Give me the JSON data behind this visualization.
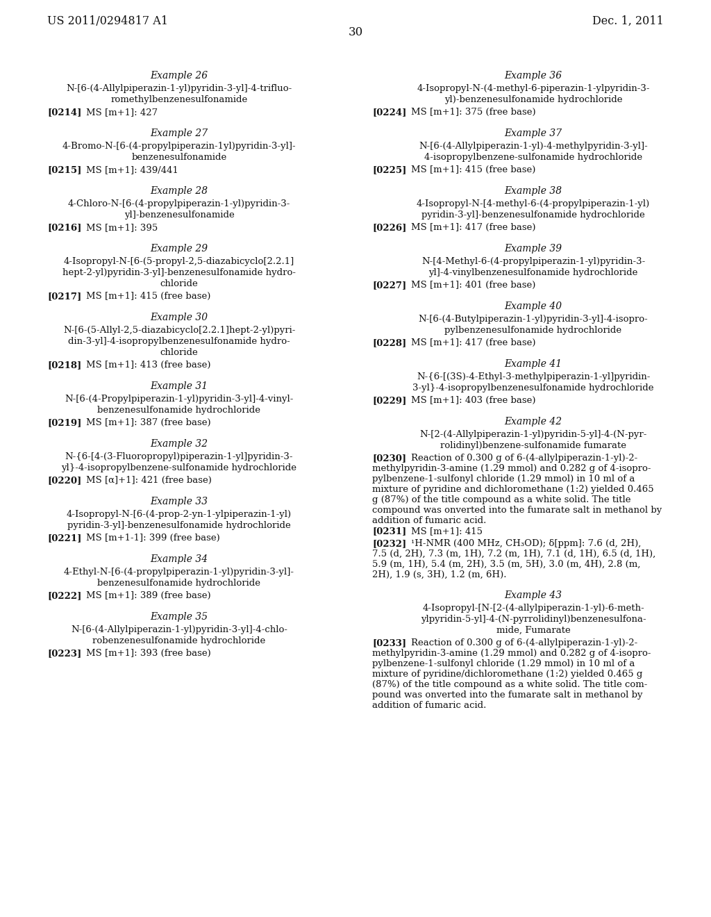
{
  "background_color": "#ffffff",
  "header_left": "US 2011/0294817 A1",
  "header_right": "Dec. 1, 2011",
  "page_number": "30",
  "left_items": [
    {
      "type": "title",
      "text": "Example 26"
    },
    {
      "type": "compound",
      "lines": [
        "N-[6-(4-Allylpiperazin-1-yl)pyridin-3-yl]-4-trifluo-",
        "romethylbenzenesulfonamide"
      ]
    },
    {
      "type": "ms",
      "bold": "[0214]",
      "plain": "    MS [m+1]: 427"
    },
    {
      "type": "gap"
    },
    {
      "type": "title",
      "text": "Example 27"
    },
    {
      "type": "compound",
      "lines": [
        "4-Bromo-N-[6-(4-propylpiperazin-1yl)pyridin-3-yl]-",
        "benzenesulfonamide"
      ]
    },
    {
      "type": "ms",
      "bold": "[0215]",
      "plain": "    MS [m+1]: 439/441"
    },
    {
      "type": "gap"
    },
    {
      "type": "title",
      "text": "Example 28"
    },
    {
      "type": "compound",
      "lines": [
        "4-Chloro-N-[6-(4-propylpiperazin-1-yl)pyridin-3-",
        "yl]-benzenesulfonamide"
      ]
    },
    {
      "type": "ms",
      "bold": "[0216]",
      "plain": "    MS [m+1]: 395"
    },
    {
      "type": "gap"
    },
    {
      "type": "title",
      "text": "Example 29"
    },
    {
      "type": "compound",
      "lines": [
        "4-Isopropyl-N-[6-(5-propyl-2,5-diazabicyclo[2.2.1]",
        "hept-2-yl)pyridin-3-yl]-benzenesulfonamide hydro-",
        "chloride"
      ]
    },
    {
      "type": "ms",
      "bold": "[0217]",
      "plain": "    MS [m+1]: 415 (free base)"
    },
    {
      "type": "gap"
    },
    {
      "type": "title",
      "text": "Example 30"
    },
    {
      "type": "compound",
      "lines": [
        "N-[6-(5-Allyl-2,5-diazabicyclo[2.2.1]hept-2-yl)pyri-",
        "din-3-yl]-4-isopropylbenzenesulfonamide hydro-",
        "chloride"
      ]
    },
    {
      "type": "ms",
      "bold": "[0218]",
      "plain": "    MS [m+1]: 413 (free base)"
    },
    {
      "type": "gap"
    },
    {
      "type": "title",
      "text": "Example 31"
    },
    {
      "type": "compound",
      "lines": [
        "N-[6-(4-Propylpiperazin-1-yl)pyridin-3-yl]-4-vinyl-",
        "benzenesulfonamide hydrochloride"
      ]
    },
    {
      "type": "ms",
      "bold": "[0219]",
      "plain": "    MS [m+1]: 387 (free base)"
    },
    {
      "type": "gap"
    },
    {
      "type": "title",
      "text": "Example 32"
    },
    {
      "type": "compound",
      "lines": [
        "N-{6-[4-(3-Fluoropropyl)piperazin-1-yl]pyridin-3-",
        "yl}-4-isopropylbenzene-sulfonamide hydrochloride"
      ]
    },
    {
      "type": "ms",
      "bold": "[0220]",
      "plain": "    MS [α]+1]: 421 (free base)"
    },
    {
      "type": "gap"
    },
    {
      "type": "title",
      "text": "Example 33"
    },
    {
      "type": "compound",
      "lines": [
        "4-Isopropyl-N-[6-(4-prop-2-yn-1-ylpiperazin-1-yl)",
        "pyridin-3-yl]-benzenesulfonamide hydrochloride"
      ]
    },
    {
      "type": "ms",
      "bold": "[0221]",
      "plain": "    MS [m+1-1]: 399 (free base)"
    },
    {
      "type": "gap"
    },
    {
      "type": "title",
      "text": "Example 34"
    },
    {
      "type": "compound",
      "lines": [
        "4-Ethyl-N-[6-(4-propylpiperazin-1-yl)pyridin-3-yl]-",
        "benzenesulfonamide hydrochloride"
      ]
    },
    {
      "type": "ms",
      "bold": "[0222]",
      "plain": "    MS [m+1]: 389 (free base)"
    },
    {
      "type": "gap"
    },
    {
      "type": "title",
      "text": "Example 35"
    },
    {
      "type": "compound",
      "lines": [
        "N-[6-(4-Allylpiperazin-1-yl)pyridin-3-yl]-4-chlo-",
        "robenzenesulfonamide hydrochloride"
      ]
    },
    {
      "type": "ms",
      "bold": "[0223]",
      "plain": "    MS [m+1]: 393 (free base)"
    }
  ],
  "right_items": [
    {
      "type": "title",
      "text": "Example 36"
    },
    {
      "type": "compound",
      "lines": [
        "4-Isopropyl-N-(4-methyl-6-piperazin-1-ylpyridin-3-",
        "yl)-benzenesulfonamide hydrochloride"
      ]
    },
    {
      "type": "ms",
      "bold": "[0224]",
      "plain": "    MS [m+1]: 375 (free base)"
    },
    {
      "type": "gap"
    },
    {
      "type": "title",
      "text": "Example 37"
    },
    {
      "type": "compound",
      "lines": [
        "N-[6-(4-Allylpiperazin-1-yl)-4-methylpyridin-3-yl]-",
        "4-isopropylbenzene-sulfonamide hydrochloride"
      ]
    },
    {
      "type": "ms",
      "bold": "[0225]",
      "plain": "    MS [m+1]: 415 (free base)"
    },
    {
      "type": "gap"
    },
    {
      "type": "title",
      "text": "Example 38"
    },
    {
      "type": "compound",
      "lines": [
        "4-Isopropyl-N-[4-methyl-6-(4-propylpiperazin-1-yl)",
        "pyridin-3-yl]-benzenesulfonamide hydrochloride"
      ]
    },
    {
      "type": "ms",
      "bold": "[0226]",
      "plain": "    MS [m+1]: 417 (free base)"
    },
    {
      "type": "gap"
    },
    {
      "type": "title",
      "text": "Example 39"
    },
    {
      "type": "compound",
      "lines": [
        "N-[4-Methyl-6-(4-propylpiperazin-1-yl)pyridin-3-",
        "yl]-4-vinylbenzenesulfonamide hydrochloride"
      ]
    },
    {
      "type": "ms",
      "bold": "[0227]",
      "plain": "    MS [m+1]: 401 (free base)"
    },
    {
      "type": "gap"
    },
    {
      "type": "title",
      "text": "Example 40"
    },
    {
      "type": "compound",
      "lines": [
        "N-[6-(4-Butylpiperazin-1-yl)pyridin-3-yl]-4-isopro-",
        "pylbenzenesulfonamide hydrochloride"
      ]
    },
    {
      "type": "ms",
      "bold": "[0228]",
      "plain": "    MS [m+1]: 417 (free base)"
    },
    {
      "type": "gap"
    },
    {
      "type": "title",
      "text": "Example 41"
    },
    {
      "type": "compound",
      "lines": [
        "N-{6-[(3S)-4-Ethyl-3-methylpiperazin-1-yl]pyridin-",
        "3-yl}-4-isopropylbenzenesulfonamide hydrochloride"
      ]
    },
    {
      "type": "ms",
      "bold": "[0229]",
      "plain": "    MS [m+1]: 403 (free base)"
    },
    {
      "type": "gap"
    },
    {
      "type": "title",
      "text": "Example 42"
    },
    {
      "type": "compound",
      "lines": [
        "N-[2-(4-Allylpiperazin-1-yl)pyridin-5-yl]-4-(N-pyr-",
        "rolidinyl)benzene-sulfonamide fumarate"
      ]
    },
    {
      "type": "para",
      "bold": "[0230]",
      "lines": [
        "    Reaction of 0.300 g of 6-(4-allylpiperazin-1-yl)-2-",
        "methylpyridin-3-amine (1.29 mmol) and 0.282 g of 4-isopro-",
        "pylbenzene-1-sulfonyl chloride (1.29 mmol) in 10 ml of a",
        "mixture of pyridine and dichloromethane (1:2) yielded 0.465",
        "g (87%) of the title compound as a white solid. The title",
        "compound was onverted into the fumarate salt in methanol by",
        "addition of fumaric acid."
      ]
    },
    {
      "type": "ms",
      "bold": "[0231]",
      "plain": "    MS [m+1]: 415"
    },
    {
      "type": "nmr",
      "bold": "[0232]",
      "lines": [
        "    ¹H-NMR (400 MHz, CH₃OD); δ[ppm]: 7.6 (d, 2H),",
        "7.5 (d, 2H), 7.3 (m, 1H), 7.2 (m, 1H), 7.1 (d, 1H), 6.5 (d, 1H),",
        "5.9 (m, 1H), 5.4 (m, 2H), 3.5 (m, 5H), 3.0 (m, 4H), 2.8 (m,",
        "2H), 1.9 (s, 3H), 1.2 (m, 6H)."
      ]
    },
    {
      "type": "gap"
    },
    {
      "type": "title",
      "text": "Example 43"
    },
    {
      "type": "compound",
      "lines": [
        "4-Isopropyl-[N-[2-(4-allylpiperazin-1-yl)-6-meth-",
        "ylpyridin-5-yl]-4-(N-pyrrolidinyl)benzenesulfona-",
        "mide, Fumarate"
      ]
    },
    {
      "type": "para",
      "bold": "[0233]",
      "lines": [
        "    Reaction of 0.300 g of 6-(4-allylpiperazin-1-yl)-2-",
        "methylpyridin-3-amine (1.29 mmol) and 0.282 g of 4-isopro-",
        "pylbenzene-1-sulfonyl chloride (1.29 mmol) in 10 ml of a",
        "mixture of pyridine/dichloromethane (1:2) yielded 0.465 g",
        "(87%) of the title compound as a white solid. The title com-",
        "pound was onverted into the fumarate salt in methanol by",
        "addition of fumaric acid."
      ]
    }
  ]
}
